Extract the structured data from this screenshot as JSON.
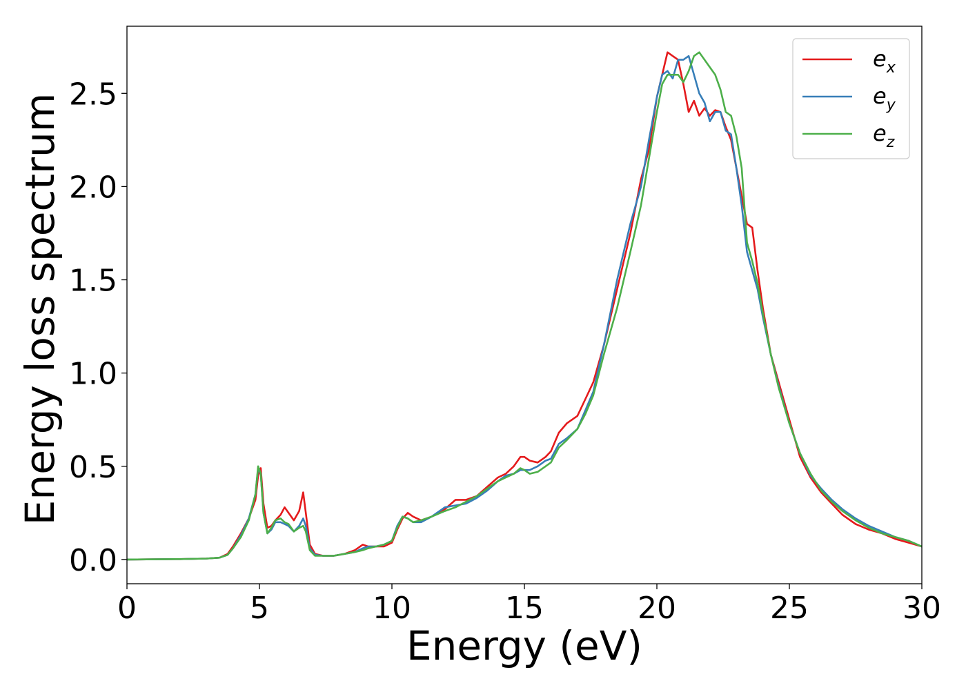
{
  "chart_data": {
    "type": "line",
    "xlabel": "Energy (eV)",
    "ylabel": "Energy loss spectrum",
    "xlim": [
      0,
      30
    ],
    "ylim": [
      -0.13,
      2.86
    ],
    "grid": false,
    "legend_position": "top-right",
    "x_ticks": [
      "0",
      "5",
      "10",
      "15",
      "20",
      "25",
      "30"
    ],
    "y_ticks": [
      "0.0",
      "0.5",
      "1.0",
      "1.5",
      "2.0",
      "2.5"
    ],
    "series": [
      {
        "name": "e",
        "subscript": "x",
        "color": "#e41a1c",
        "x": [
          0,
          2,
          3,
          3.5,
          3.8,
          4.0,
          4.3,
          4.6,
          4.85,
          4.95,
          5.05,
          5.15,
          5.3,
          5.45,
          5.6,
          5.8,
          5.95,
          6.1,
          6.3,
          6.5,
          6.65,
          6.75,
          6.9,
          7.1,
          7.4,
          7.8,
          8.2,
          8.6,
          8.9,
          9.1,
          9.4,
          9.7,
          10.0,
          10.2,
          10.4,
          10.6,
          10.8,
          11.1,
          11.5,
          12.0,
          12.4,
          12.8,
          13.2,
          13.6,
          14.0,
          14.3,
          14.6,
          14.85,
          15.0,
          15.2,
          15.5,
          15.8,
          16.0,
          16.3,
          16.6,
          17.0,
          17.3,
          17.6,
          18.0,
          18.5,
          19.0,
          19.4,
          19.7,
          20.0,
          20.2,
          20.4,
          20.6,
          20.8,
          21.0,
          21.2,
          21.4,
          21.6,
          21.8,
          22.0,
          22.2,
          22.4,
          22.6,
          22.8,
          23.0,
          23.2,
          23.4,
          23.6,
          23.8,
          24.0,
          24.3,
          24.6,
          25.0,
          25.4,
          25.8,
          26.2,
          26.6,
          27.0,
          27.5,
          28.0,
          28.5,
          29.0,
          29.5,
          30.0
        ],
        "y": [
          0.0,
          0.002,
          0.005,
          0.01,
          0.03,
          0.07,
          0.14,
          0.22,
          0.32,
          0.45,
          0.49,
          0.3,
          0.17,
          0.18,
          0.21,
          0.24,
          0.28,
          0.25,
          0.21,
          0.26,
          0.36,
          0.25,
          0.08,
          0.03,
          0.02,
          0.02,
          0.03,
          0.05,
          0.08,
          0.07,
          0.07,
          0.07,
          0.09,
          0.16,
          0.22,
          0.25,
          0.23,
          0.21,
          0.23,
          0.27,
          0.32,
          0.32,
          0.34,
          0.39,
          0.44,
          0.46,
          0.5,
          0.55,
          0.55,
          0.53,
          0.52,
          0.55,
          0.58,
          0.68,
          0.73,
          0.77,
          0.86,
          0.95,
          1.15,
          1.45,
          1.75,
          2.04,
          2.2,
          2.48,
          2.6,
          2.72,
          2.7,
          2.68,
          2.55,
          2.4,
          2.46,
          2.38,
          2.42,
          2.38,
          2.41,
          2.4,
          2.32,
          2.25,
          2.1,
          1.95,
          1.8,
          1.78,
          1.55,
          1.35,
          1.1,
          0.95,
          0.75,
          0.55,
          0.44,
          0.36,
          0.3,
          0.24,
          0.19,
          0.16,
          0.14,
          0.11,
          0.09,
          0.07
        ]
      },
      {
        "name": "e",
        "subscript": "y",
        "color": "#377eb8",
        "x": [
          0,
          2,
          3,
          3.5,
          3.8,
          4.0,
          4.3,
          4.6,
          4.85,
          4.95,
          5.05,
          5.15,
          5.3,
          5.45,
          5.6,
          5.8,
          5.95,
          6.1,
          6.3,
          6.5,
          6.65,
          6.75,
          6.9,
          7.1,
          7.4,
          7.8,
          8.2,
          8.6,
          8.9,
          9.1,
          9.4,
          9.7,
          10.0,
          10.2,
          10.4,
          10.6,
          10.8,
          11.1,
          11.5,
          12.0,
          12.4,
          12.8,
          13.2,
          13.6,
          14.0,
          14.3,
          14.6,
          14.85,
          15.0,
          15.2,
          15.5,
          15.8,
          16.0,
          16.3,
          16.6,
          17.0,
          17.3,
          17.6,
          18.0,
          18.5,
          19.0,
          19.4,
          19.7,
          20.0,
          20.2,
          20.4,
          20.6,
          20.8,
          21.0,
          21.2,
          21.4,
          21.6,
          21.8,
          22.0,
          22.2,
          22.4,
          22.6,
          22.8,
          23.0,
          23.2,
          23.4,
          23.6,
          23.8,
          24.0,
          24.3,
          24.6,
          25.0,
          25.4,
          25.8,
          26.2,
          26.6,
          27.0,
          27.5,
          28.0,
          28.5,
          29.0,
          29.5,
          30.0
        ],
        "y": [
          0.0,
          0.002,
          0.005,
          0.01,
          0.025,
          0.06,
          0.13,
          0.22,
          0.35,
          0.49,
          0.46,
          0.25,
          0.14,
          0.16,
          0.2,
          0.2,
          0.19,
          0.18,
          0.15,
          0.18,
          0.22,
          0.18,
          0.06,
          0.025,
          0.02,
          0.02,
          0.03,
          0.04,
          0.06,
          0.07,
          0.07,
          0.08,
          0.1,
          0.18,
          0.23,
          0.22,
          0.2,
          0.2,
          0.23,
          0.28,
          0.29,
          0.3,
          0.33,
          0.37,
          0.42,
          0.45,
          0.46,
          0.48,
          0.48,
          0.48,
          0.5,
          0.53,
          0.54,
          0.62,
          0.65,
          0.7,
          0.8,
          0.9,
          1.15,
          1.5,
          1.8,
          2.0,
          2.25,
          2.48,
          2.6,
          2.62,
          2.58,
          2.68,
          2.68,
          2.7,
          2.6,
          2.5,
          2.45,
          2.35,
          2.4,
          2.4,
          2.3,
          2.28,
          2.1,
          1.9,
          1.65,
          1.55,
          1.45,
          1.3,
          1.1,
          0.93,
          0.73,
          0.57,
          0.45,
          0.38,
          0.32,
          0.27,
          0.22,
          0.18,
          0.15,
          0.12,
          0.1,
          0.07
        ]
      },
      {
        "name": "e",
        "subscript": "z",
        "color": "#4daf4a",
        "x": [
          0,
          2,
          3,
          3.5,
          3.8,
          4.0,
          4.3,
          4.6,
          4.85,
          4.95,
          5.05,
          5.15,
          5.3,
          5.45,
          5.6,
          5.8,
          5.95,
          6.1,
          6.3,
          6.5,
          6.65,
          6.75,
          6.9,
          7.1,
          7.4,
          7.8,
          8.2,
          8.6,
          8.9,
          9.1,
          9.4,
          9.7,
          10.0,
          10.2,
          10.4,
          10.6,
          10.8,
          11.1,
          11.5,
          12.0,
          12.4,
          12.8,
          13.2,
          13.6,
          14.0,
          14.3,
          14.6,
          14.85,
          15.0,
          15.2,
          15.5,
          15.8,
          16.0,
          16.3,
          16.6,
          17.0,
          17.3,
          17.6,
          18.0,
          18.5,
          19.0,
          19.4,
          19.7,
          20.0,
          20.2,
          20.4,
          20.6,
          20.8,
          21.0,
          21.2,
          21.4,
          21.6,
          21.8,
          22.0,
          22.2,
          22.4,
          22.6,
          22.8,
          23.0,
          23.2,
          23.4,
          23.6,
          23.8,
          24.0,
          24.3,
          24.6,
          25.0,
          25.4,
          25.8,
          26.2,
          26.6,
          27.0,
          27.5,
          28.0,
          28.5,
          29.0,
          29.5,
          30.0
        ],
        "y": [
          0.0,
          0.002,
          0.005,
          0.01,
          0.025,
          0.06,
          0.12,
          0.21,
          0.35,
          0.5,
          0.46,
          0.25,
          0.14,
          0.17,
          0.21,
          0.22,
          0.2,
          0.19,
          0.15,
          0.17,
          0.18,
          0.15,
          0.05,
          0.02,
          0.02,
          0.02,
          0.03,
          0.04,
          0.05,
          0.06,
          0.07,
          0.08,
          0.1,
          0.17,
          0.23,
          0.22,
          0.2,
          0.21,
          0.23,
          0.26,
          0.28,
          0.31,
          0.34,
          0.38,
          0.42,
          0.44,
          0.46,
          0.49,
          0.48,
          0.46,
          0.47,
          0.5,
          0.52,
          0.6,
          0.64,
          0.7,
          0.78,
          0.88,
          1.1,
          1.35,
          1.65,
          1.9,
          2.15,
          2.4,
          2.55,
          2.6,
          2.6,
          2.6,
          2.56,
          2.62,
          2.7,
          2.72,
          2.68,
          2.64,
          2.6,
          2.52,
          2.4,
          2.38,
          2.27,
          2.1,
          1.7,
          1.6,
          1.48,
          1.32,
          1.1,
          0.92,
          0.73,
          0.57,
          0.46,
          0.37,
          0.31,
          0.26,
          0.21,
          0.17,
          0.14,
          0.12,
          0.1,
          0.07
        ]
      }
    ]
  }
}
